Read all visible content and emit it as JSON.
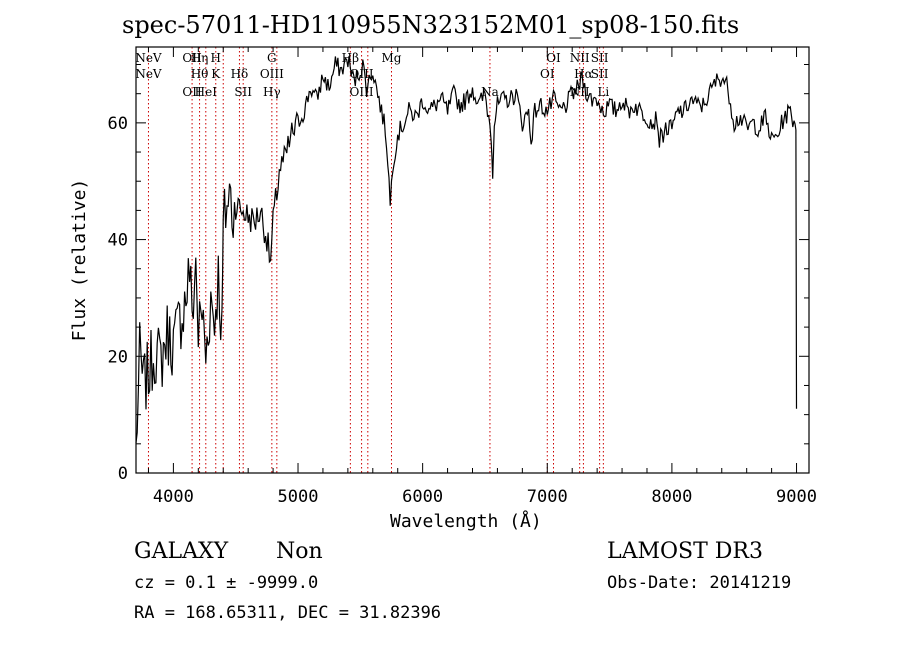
{
  "chart_data": {
    "type": "line",
    "title": "spec-57011-HD110955N323152M01_sp08-150.fits",
    "xlabel": "Wavelength (Å)",
    "ylabel": "Flux (relative)",
    "xlim": [
      3700,
      9100
    ],
    "ylim": [
      0,
      73
    ],
    "xticks": [
      4000,
      5000,
      6000,
      7000,
      8000,
      9000
    ],
    "yticks": [
      0,
      20,
      40,
      60
    ],
    "grid": false,
    "line_color": "#000000",
    "marker_color": "#cc0000",
    "series": [
      {
        "x": [
          3700,
          3730,
          3760,
          3800,
          3850,
          3900,
          3950,
          4000,
          4050,
          4100,
          4130,
          4150,
          4180,
          4200,
          4230,
          4260,
          4300,
          4330,
          4360,
          4390,
          4400,
          4420,
          4450,
          4480,
          4500,
          4550,
          4600,
          4650,
          4700,
          4750,
          4780,
          4800,
          4830,
          4850,
          4900,
          4950,
          5000,
          5050,
          5100,
          5150,
          5200,
          5250,
          5300,
          5350,
          5400,
          5450,
          5500,
          5520,
          5550,
          5600,
          5650,
          5700,
          5720,
          5740,
          5760,
          5800,
          5850,
          5890,
          5950,
          6000,
          6050,
          6100,
          6150,
          6200,
          6250,
          6300,
          6350,
          6400,
          6450,
          6500,
          6530,
          6550,
          6562,
          6575,
          6600,
          6650,
          6700,
          6750,
          6800,
          6850,
          6870,
          6900,
          6950,
          7000,
          7050,
          7100,
          7150,
          7200,
          7250,
          7280,
          7300,
          7350,
          7400,
          7450,
          7500,
          7550,
          7600,
          7650,
          7700,
          7750,
          7800,
          7850,
          7880,
          7900,
          7950,
          8000,
          8050,
          8100,
          8150,
          8200,
          8250,
          8300,
          8350,
          8400,
          8450,
          8500,
          8550,
          8600,
          8650,
          8700,
          8750,
          8800,
          8850,
          8900,
          8950,
          8980,
          8995,
          9000
        ],
        "y": [
          4,
          20,
          15,
          17,
          21,
          19,
          24,
          22,
          26,
          30,
          35,
          27,
          36,
          24,
          28,
          20,
          30,
          26,
          34,
          24,
          42,
          45,
          48,
          44,
          46,
          45,
          44,
          43,
          45,
          40,
          36,
          43,
          48,
          52,
          54,
          58,
          60,
          62,
          66,
          64,
          68,
          66,
          70,
          69,
          71,
          67,
          69,
          70,
          66,
          69,
          64,
          59,
          54,
          46,
          53,
          58,
          60,
          62,
          61,
          64,
          62,
          63,
          64,
          62,
          65,
          63,
          64,
          66,
          63,
          65,
          61,
          58,
          52,
          60,
          63,
          64,
          64,
          65,
          60,
          62,
          57,
          62,
          63,
          62,
          64,
          62,
          63,
          65,
          66,
          68,
          66,
          64,
          64,
          62,
          63,
          62,
          64,
          62,
          63,
          62,
          61,
          60,
          61,
          57,
          59,
          59,
          62,
          62,
          64,
          63,
          63,
          65,
          67,
          68,
          66,
          60,
          61,
          59,
          60,
          59,
          61,
          57,
          58,
          61,
          62,
          60,
          60,
          11
        ]
      }
    ],
    "lines": [
      {
        "x": 3800,
        "top": "NeV",
        "mid": "NeV"
      },
      {
        "x": 4150,
        "top": "OII",
        "bot": "OII"
      },
      {
        "x": 4210,
        "top": "Hη",
        "mid": "Hθ"
      },
      {
        "x": 4260,
        "bot": "HeI"
      },
      {
        "x": 4340,
        "top": "H",
        "mid": "K"
      },
      {
        "x": 4400
      },
      {
        "x": 4530,
        "mid": "Hδ"
      },
      {
        "x": 4560,
        "bot": "SII"
      },
      {
        "x": 4790,
        "top": "G",
        "mid": "OIII",
        "bot": "Hγ"
      },
      {
        "x": 4830
      },
      {
        "x": 5420,
        "top": "Hβ"
      },
      {
        "x": 5510,
        "mid": "OIII",
        "bot": "OIII"
      },
      {
        "x": 5560
      },
      {
        "x": 5750,
        "top": "Mg"
      },
      {
        "x": 6540,
        "bot": "Na"
      },
      {
        "x": 7000,
        "mid": "OI"
      },
      {
        "x": 7050,
        "top": "OI"
      },
      {
        "x": 7260,
        "top": "NII",
        "bot": "NII"
      },
      {
        "x": 7290,
        "mid": "Hα"
      },
      {
        "x": 7420,
        "top": "SII",
        "mid": "SII"
      },
      {
        "x": 7450,
        "bot": "Li"
      }
    ]
  },
  "info": {
    "class": "GALAXY",
    "subclass": "Non",
    "survey": "LAMOST DR3",
    "cz": "cz = 0.1 ± -9999.0",
    "obs_date": "Obs-Date: 20141219",
    "radec": "RA = 168.65311, DEC =  31.82396"
  }
}
